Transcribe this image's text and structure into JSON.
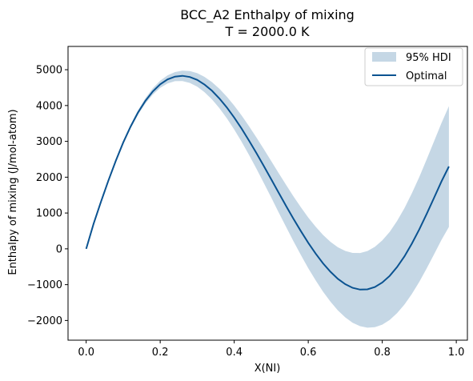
{
  "chart_data": {
    "type": "line",
    "title": "BCC_A2 Enthalpy of mixing",
    "subtitle": "T = 2000.0 K",
    "xlabel": "X(NI)",
    "ylabel": "Enthalpy of mixing (J/mol-atom)",
    "xlim": [
      -0.049,
      1.03
    ],
    "ylim": [
      -2550,
      5650
    ],
    "xticks": [
      0.0,
      0.2,
      0.4,
      0.6,
      0.8,
      1.0
    ],
    "xtick_labels": [
      "0.0",
      "0.2",
      "0.4",
      "0.6",
      "0.8",
      "1.0"
    ],
    "yticks": [
      -2000,
      -1000,
      0,
      1000,
      2000,
      3000,
      4000,
      5000
    ],
    "ytick_labels": [
      "−2000",
      "−1000",
      "0",
      "1000",
      "2000",
      "3000",
      "4000",
      "5000"
    ],
    "grid": false,
    "legend_position": "top-right",
    "series": [
      {
        "name": "95% HDI",
        "kind": "band",
        "color": "#c5d7e5",
        "x": [
          0.0,
          0.02,
          0.04,
          0.06,
          0.08,
          0.1,
          0.12,
          0.14,
          0.16,
          0.18,
          0.2,
          0.22,
          0.24,
          0.26,
          0.28,
          0.3,
          0.32,
          0.34,
          0.36,
          0.38,
          0.4,
          0.42,
          0.44,
          0.46,
          0.48,
          0.5,
          0.52,
          0.54,
          0.56,
          0.58,
          0.6,
          0.62,
          0.64,
          0.66,
          0.68,
          0.7,
          0.72,
          0.74,
          0.76,
          0.78,
          0.8,
          0.82,
          0.84,
          0.86,
          0.88,
          0.9,
          0.92,
          0.94,
          0.96,
          0.98
        ],
        "lower": [
          0,
          691,
          1305,
          1883,
          2426,
          2924,
          3363,
          3741,
          4056,
          4306,
          4493,
          4617,
          4680,
          4684,
          4631,
          4526,
          4371,
          4170,
          3927,
          3646,
          3332,
          2989,
          2622,
          2237,
          1838,
          1431,
          1021,
          614,
          215,
          -171,
          -539,
          -882,
          -1196,
          -1476,
          -1717,
          -1913,
          -2062,
          -2159,
          -2202,
          -2188,
          -2116,
          -1985,
          -1797,
          -1554,
          -1260,
          -922,
          -549,
          -151,
          250,
          612
        ],
        "upper": [
          0,
          700,
          1330,
          1925,
          2488,
          3006,
          3466,
          3866,
          4206,
          4481,
          4693,
          4843,
          4936,
          4975,
          4963,
          4904,
          4799,
          4653,
          4468,
          4248,
          3998,
          3722,
          3424,
          3110,
          2784,
          2451,
          2117,
          1787,
          1467,
          1161,
          876,
          616,
          388,
          196,
          45,
          -59,
          -114,
          -116,
          -62,
          55,
          233,
          474,
          776,
          1136,
          1549,
          2006,
          2497,
          3005,
          3510,
          3983
        ]
      },
      {
        "name": "Optimal",
        "kind": "line",
        "color": "#0b5391",
        "x": [
          0.0,
          0.02,
          0.04,
          0.06,
          0.08,
          0.1,
          0.12,
          0.14,
          0.16,
          0.18,
          0.2,
          0.22,
          0.24,
          0.26,
          0.28,
          0.3,
          0.32,
          0.34,
          0.36,
          0.38,
          0.4,
          0.42,
          0.44,
          0.46,
          0.48,
          0.5,
          0.52,
          0.54,
          0.56,
          0.58,
          0.6,
          0.62,
          0.64,
          0.66,
          0.68,
          0.7,
          0.72,
          0.74,
          0.76,
          0.78,
          0.8,
          0.82,
          0.84,
          0.86,
          0.88,
          0.9,
          0.92,
          0.94,
          0.96,
          0.98
        ],
        "values": [
          0,
          696,
          1318,
          1904,
          2457,
          2965,
          3414,
          3804,
          4131,
          4393,
          4593,
          4730,
          4808,
          4830,
          4797,
          4715,
          4585,
          4412,
          4198,
          3947,
          3665,
          3356,
          3023,
          2673,
          2311,
          1941,
          1569,
          1200,
          841,
          495,
          169,
          -133,
          -404,
          -640,
          -836,
          -986,
          -1088,
          -1138,
          -1132,
          -1067,
          -942,
          -755,
          -510,
          -209,
          144,
          542,
          974,
          1427,
          1880,
          2298
        ]
      }
    ]
  }
}
